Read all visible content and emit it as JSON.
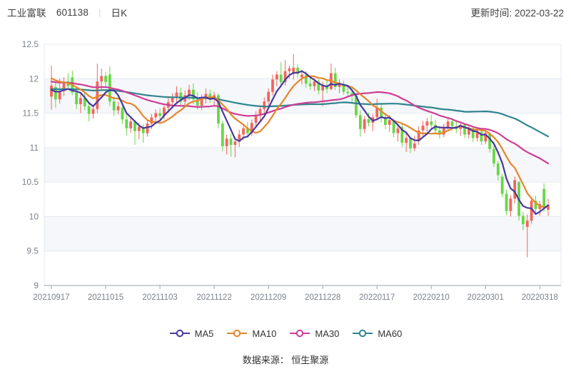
{
  "header": {
    "stock_name": "工业富联",
    "stock_code": "601138",
    "divider": "|",
    "period": "日K",
    "update_time": "更新时间: 2022-03-22"
  },
  "footer": {
    "source": "数据来源： 恒生聚源"
  },
  "chart_data": {
    "type": "candlestick",
    "title": "工业富联 601138 日K",
    "y_axis": {
      "min": 9,
      "max": 12.5,
      "tick_step": 0.5,
      "ticks": [
        12.5,
        12,
        11.5,
        11,
        10.5,
        10,
        9.5,
        9
      ]
    },
    "x_axis": {
      "tick_indices": [
        0,
        13,
        26,
        39,
        52,
        65,
        78,
        91,
        104,
        117
      ],
      "tick_labels": [
        "20210917",
        "20211015",
        "20211103",
        "20211122",
        "20211209",
        "20211228",
        "20220117",
        "20220210",
        "20220301",
        "20220318"
      ]
    },
    "colors": {
      "up": "#f3655c",
      "down": "#67d746",
      "grid": "#e4e8f1",
      "band": "#f5f7fa",
      "axis_line": "#9aa0aa",
      "label": "#7b818c"
    },
    "legend_position": "bottom",
    "grid": true,
    "candle_fields": [
      "date",
      "open",
      "high",
      "low",
      "close"
    ],
    "candles": [
      [
        "20210917",
        11.74,
        12.19,
        11.55,
        11.9
      ],
      [
        "20210922",
        11.88,
        11.94,
        11.58,
        11.7
      ],
      [
        "20210923",
        11.7,
        12.0,
        11.64,
        11.82
      ],
      [
        "20210924",
        11.82,
        12.02,
        11.75,
        11.94
      ],
      [
        "20210927",
        11.96,
        12.08,
        11.84,
        11.89
      ],
      [
        "20210928",
        12.02,
        12.12,
        11.76,
        11.8
      ],
      [
        "20210929",
        11.8,
        11.88,
        11.56,
        11.63
      ],
      [
        "20210930",
        11.63,
        11.79,
        11.5,
        11.72
      ],
      [
        "20211008",
        11.72,
        11.8,
        11.54,
        11.6
      ],
      [
        "20211011",
        11.6,
        11.67,
        11.38,
        11.49
      ],
      [
        "20211012",
        11.49,
        11.62,
        11.42,
        11.56
      ],
      [
        "20211013",
        11.56,
        12.22,
        11.5,
        11.96
      ],
      [
        "20211014",
        11.96,
        12.15,
        11.84,
        12.04
      ],
      [
        "20211015",
        12.04,
        12.1,
        11.88,
        11.95
      ],
      [
        "20211018",
        12.06,
        12.18,
        11.6,
        11.67
      ],
      [
        "20211019",
        11.67,
        11.74,
        11.46,
        11.54
      ],
      [
        "20211020",
        11.54,
        11.66,
        11.48,
        11.6
      ],
      [
        "20211021",
        11.58,
        11.62,
        11.34,
        11.41
      ],
      [
        "20211022",
        11.41,
        11.5,
        11.18,
        11.28
      ],
      [
        "20211025",
        11.28,
        11.44,
        11.22,
        11.38
      ],
      [
        "20211026",
        11.38,
        11.4,
        11.04,
        11.24
      ],
      [
        "20211027",
        11.24,
        11.36,
        11.12,
        11.3
      ],
      [
        "20211028",
        11.3,
        11.34,
        11.07,
        11.21
      ],
      [
        "20211029",
        11.21,
        11.4,
        11.16,
        11.35
      ],
      [
        "20211101",
        11.35,
        11.49,
        11.27,
        11.44
      ],
      [
        "20211102",
        11.44,
        11.55,
        11.34,
        11.5
      ],
      [
        "20211103",
        11.5,
        11.57,
        11.39,
        11.46
      ],
      [
        "20211104",
        11.46,
        11.63,
        11.41,
        11.58
      ],
      [
        "20211105",
        11.58,
        11.73,
        11.5,
        11.66
      ],
      [
        "20211108",
        11.66,
        11.79,
        11.57,
        11.74
      ],
      [
        "20211109",
        11.74,
        11.89,
        11.65,
        11.8
      ],
      [
        "20211110",
        11.8,
        11.87,
        11.59,
        11.67
      ],
      [
        "20211111",
        11.67,
        11.83,
        11.61,
        11.76
      ],
      [
        "20211112",
        11.76,
        11.91,
        11.69,
        11.84
      ],
      [
        "20211115",
        11.84,
        11.93,
        11.63,
        11.7
      ],
      [
        "20211116",
        11.7,
        11.8,
        11.55,
        11.61
      ],
      [
        "20211117",
        11.61,
        11.77,
        11.55,
        11.72
      ],
      [
        "20211118",
        11.72,
        11.86,
        11.64,
        11.78
      ],
      [
        "20211119",
        11.78,
        11.84,
        11.65,
        11.71
      ],
      [
        "20211122",
        11.71,
        11.81,
        11.62,
        11.76
      ],
      [
        "20211123",
        11.76,
        11.79,
        11.28,
        11.35
      ],
      [
        "20211124",
        11.35,
        11.39,
        10.95,
        11.02
      ],
      [
        "20211125",
        11.02,
        11.19,
        10.9,
        11.13
      ],
      [
        "20211126",
        11.13,
        11.2,
        10.87,
        11.04
      ],
      [
        "20211129",
        11.04,
        11.16,
        10.86,
        11.09
      ],
      [
        "20211130",
        11.09,
        11.26,
        11.01,
        11.19
      ],
      [
        "20211201",
        11.19,
        11.33,
        11.11,
        11.28
      ],
      [
        "20211202",
        11.28,
        11.37,
        11.14,
        11.21
      ],
      [
        "20211203",
        11.21,
        11.41,
        11.17,
        11.36
      ],
      [
        "20211206",
        11.36,
        11.53,
        11.29,
        11.47
      ],
      [
        "20211207",
        11.47,
        11.61,
        11.39,
        11.56
      ],
      [
        "20211208",
        11.56,
        11.73,
        11.49,
        11.67
      ],
      [
        "20211209",
        11.67,
        11.86,
        11.61,
        11.81
      ],
      [
        "20211210",
        11.81,
        12.06,
        11.76,
        11.99
      ],
      [
        "20211213",
        11.99,
        12.11,
        11.89,
        12.06
      ],
      [
        "20211214",
        12.06,
        12.24,
        11.9,
        11.95
      ],
      [
        "20211215",
        11.95,
        12.27,
        11.9,
        12.11
      ],
      [
        "20211216",
        12.11,
        12.19,
        12.0,
        12.15
      ],
      [
        "20211217",
        12.07,
        12.36,
        11.99,
        12.16
      ],
      [
        "20211220",
        12.16,
        12.21,
        12.01,
        12.07
      ],
      [
        "20211221",
        12.02,
        12.13,
        11.92,
        12.06
      ],
      [
        "20211222",
        12.06,
        12.11,
        11.87,
        11.93
      ],
      [
        "20211223",
        11.93,
        12.02,
        11.84,
        11.89
      ],
      [
        "20211224",
        11.89,
        12.01,
        11.82,
        11.96
      ],
      [
        "20211227",
        11.96,
        11.99,
        11.77,
        11.83
      ],
      [
        "20211228",
        11.83,
        11.96,
        11.6,
        11.9
      ],
      [
        "20211229",
        11.9,
        11.97,
        11.79,
        11.85
      ],
      [
        "20211230",
        11.85,
        12.22,
        11.83,
        12.08
      ],
      [
        "20211231",
        12.08,
        12.16,
        11.84,
        11.88
      ],
      [
        "20220104",
        11.88,
        11.99,
        11.79,
        11.93
      ],
      [
        "20220105",
        11.93,
        11.97,
        11.77,
        11.81
      ],
      [
        "20220106",
        11.81,
        11.9,
        11.73,
        11.79
      ],
      [
        "20220107",
        11.79,
        11.87,
        11.66,
        11.75
      ],
      [
        "20220110",
        11.75,
        11.79,
        11.43,
        11.47
      ],
      [
        "20220111",
        11.47,
        11.54,
        11.16,
        11.27
      ],
      [
        "20220112",
        11.27,
        11.46,
        11.21,
        11.41
      ],
      [
        "20220113",
        11.41,
        11.51,
        11.31,
        11.36
      ],
      [
        "20220114",
        11.36,
        11.49,
        11.24,
        11.44
      ],
      [
        "20220117",
        11.44,
        11.71,
        11.39,
        11.58
      ],
      [
        "20220118",
        11.58,
        11.63,
        11.37,
        11.43
      ],
      [
        "20220119",
        11.43,
        11.49,
        11.27,
        11.33
      ],
      [
        "20220120",
        11.33,
        11.47,
        11.23,
        11.4
      ],
      [
        "20220121",
        11.4,
        11.42,
        11.15,
        11.21
      ],
      [
        "20220124",
        11.21,
        11.35,
        11.09,
        11.28
      ],
      [
        "20220125",
        11.3,
        11.36,
        11.01,
        11.07
      ],
      [
        "20220126",
        11.07,
        11.21,
        10.94,
        11.14
      ],
      [
        "20220127",
        11.14,
        11.16,
        10.92,
        10.99
      ],
      [
        "20220128",
        10.99,
        11.17,
        10.95,
        11.06
      ],
      [
        "20220207",
        11.11,
        11.31,
        11.04,
        11.25
      ],
      [
        "20220208",
        11.25,
        11.39,
        11.17,
        11.32
      ],
      [
        "20220209",
        11.32,
        11.43,
        11.23,
        11.38
      ],
      [
        "20220210",
        11.38,
        11.48,
        11.27,
        11.33
      ],
      [
        "20220211",
        11.33,
        11.41,
        11.19,
        11.25
      ],
      [
        "20220214",
        11.25,
        11.31,
        11.13,
        11.19
      ],
      [
        "20220215",
        11.19,
        11.35,
        11.15,
        11.3
      ],
      [
        "20220216",
        11.3,
        11.43,
        11.25,
        11.38
      ],
      [
        "20220217",
        11.38,
        11.42,
        11.27,
        11.31
      ],
      [
        "20220218",
        11.31,
        11.39,
        11.21,
        11.27
      ],
      [
        "20220221",
        11.27,
        11.37,
        11.17,
        11.33
      ],
      [
        "20220222",
        11.33,
        11.35,
        11.14,
        11.19
      ],
      [
        "20220223",
        11.19,
        11.33,
        11.13,
        11.28
      ],
      [
        "20220224",
        11.28,
        11.3,
        11.08,
        11.14
      ],
      [
        "20220225",
        11.14,
        11.29,
        11.09,
        11.23
      ],
      [
        "20220228",
        11.23,
        11.26,
        11.04,
        11.09
      ],
      [
        "20220301",
        11.09,
        11.26,
        11.05,
        11.21
      ],
      [
        "20220302",
        11.21,
        11.23,
        10.93,
        10.98
      ],
      [
        "20220303",
        10.98,
        11.09,
        10.72,
        10.77
      ],
      [
        "20220304",
        10.77,
        10.81,
        10.52,
        10.6
      ],
      [
        "20220307",
        10.58,
        10.62,
        10.28,
        10.33
      ],
      [
        "20220308",
        10.33,
        10.39,
        10.02,
        10.08
      ],
      [
        "20220309",
        10.08,
        10.31,
        10.0,
        10.26
      ],
      [
        "20220310",
        10.26,
        10.58,
        10.19,
        10.53
      ],
      [
        "20220311",
        10.5,
        10.52,
        9.94,
        10.01
      ],
      [
        "20220314",
        10.01,
        10.07,
        9.8,
        9.89
      ],
      [
        "20220315",
        9.85,
        10.03,
        9.41,
        9.94
      ],
      [
        "20220316",
        9.94,
        10.28,
        9.9,
        10.23
      ],
      [
        "20220317",
        10.23,
        10.3,
        10.04,
        10.11
      ],
      [
        "20220318",
        10.11,
        10.23,
        10.01,
        10.18
      ],
      [
        "20220321",
        10.4,
        10.48,
        10.07,
        10.13
      ],
      [
        "20220322",
        10.1,
        10.26,
        10.01,
        10.17
      ]
    ],
    "ma_series": [
      {
        "name": "MA5",
        "period": 5,
        "color": "#473a9d",
        "left_anchor": 11.82
      },
      {
        "name": "MA10",
        "period": 10,
        "color": "#e5862a",
        "left_anchor": 12.02
      },
      {
        "name": "MA30",
        "period": 30,
        "color": "#ce3d95",
        "left_anchor": 11.96
      },
      {
        "name": "MA60",
        "period": 60,
        "color": "#2f858e",
        "left_anchor": 11.85
      }
    ]
  }
}
